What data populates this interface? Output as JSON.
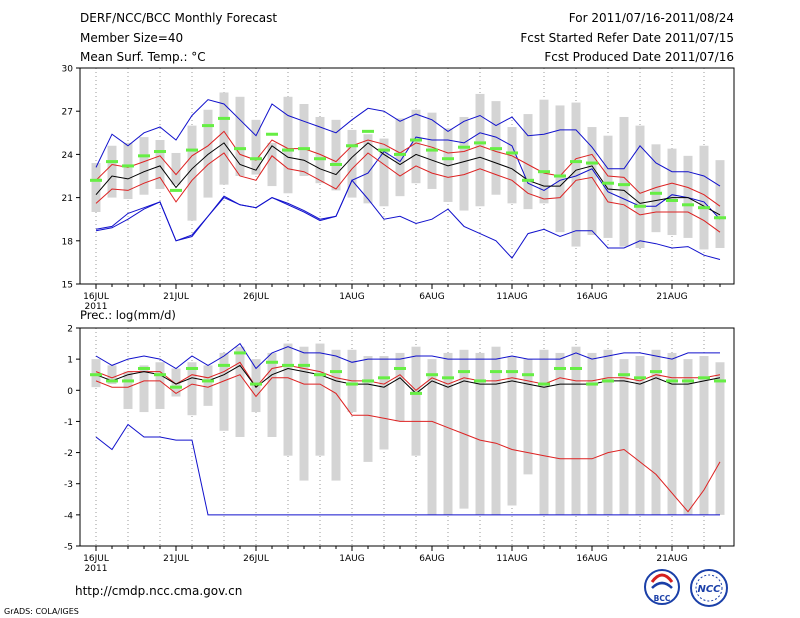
{
  "header": {
    "left": [
      "DERF/NCC/BCC Monthly Forecast",
      "Member Size=40",
      "Mean Surf. Temp.: °C"
    ],
    "right": [
      "For 2011/07/16-2011/08/24",
      "Fcst Started Refer Date 2011/07/15",
      "Fcst Produced Date 2011/07/16"
    ]
  },
  "footer": {
    "url": "http://cmdp.ncc.cma.gov.cn",
    "grads": "GrADS: COLA/IGES",
    "logo_bcc": "BCC",
    "logo_ncc": "NCC"
  },
  "colors": {
    "box": "#d4d4d4",
    "median": "#66ee44",
    "mean": "#000000",
    "spread": "#dd2222",
    "extreme": "#1111cc",
    "dot": "#999999"
  },
  "chart_data": [
    {
      "type": "line",
      "title": "Mean Surf. Temp.: °C",
      "ylim": [
        15,
        30
      ],
      "yticks": [
        15,
        18,
        21,
        24,
        27,
        30
      ],
      "xtick_labels": [
        "16JUL",
        "21JUL",
        "26JUL",
        "1AUG",
        "6AUG",
        "11AUG",
        "16AUG",
        "21AUG"
      ],
      "xtick_days": [
        1,
        6,
        11,
        17,
        22,
        27,
        32,
        37
      ],
      "year_label": "2011",
      "days": 40,
      "box_low": [
        20.0,
        21.0,
        20.9,
        21.2,
        21.6,
        21.9,
        19.4,
        21.0,
        21.9,
        22.5,
        22.6,
        21.8,
        21.3,
        22.5,
        22.0,
        21.5,
        21.0,
        20.6,
        20.4,
        21.1,
        22.0,
        21.6,
        20.7,
        20.1,
        20.4,
        21.2,
        20.6,
        20.2,
        20.6,
        18.6,
        17.6,
        18.4,
        18.2,
        17.6,
        17.5,
        18.6,
        18.4,
        18.2,
        17.4,
        17.5
      ],
      "box_high": [
        23.4,
        24.6,
        24.8,
        25.2,
        25.0,
        24.1,
        26.0,
        27.1,
        28.3,
        28.0,
        26.4,
        24.8,
        28.0,
        27.5,
        26.6,
        26.4,
        25.7,
        25.4,
        25.1,
        26.5,
        27.1,
        26.9,
        25.8,
        26.6,
        28.2,
        27.7,
        25.9,
        26.8,
        27.8,
        27.4,
        27.6,
        25.9,
        25.3,
        26.6,
        26.0,
        24.7,
        24.4,
        23.9,
        24.6,
        23.6
      ],
      "median": [
        22.2,
        23.5,
        23.2,
        23.9,
        24.2,
        21.5,
        24.3,
        26.0,
        26.5,
        24.4,
        23.7,
        25.4,
        24.3,
        24.4,
        23.7,
        23.3,
        24.6,
        25.6,
        24.3,
        24.0,
        25.0,
        24.3,
        23.7,
        24.5,
        24.8,
        24.4,
        24.1,
        22.2,
        22.8,
        22.5,
        23.5,
        23.4,
        22.0,
        21.9,
        20.4,
        21.3,
        20.8,
        20.5,
        20.3,
        19.6
      ],
      "series": [
        {
          "name": "max",
          "role": "extreme",
          "values": [
            18.8,
            19.0,
            19.9,
            20.3,
            20.7,
            18.0,
            18.4,
            19.7,
            21.0,
            20.5,
            20.3,
            21.0,
            20.6,
            20.1,
            19.5,
            19.7,
            22.2,
            22.7,
            24.2,
            23.5,
            25.2,
            25.0,
            25.0,
            24.8,
            25.5,
            25.2,
            24.6,
            22.0,
            21.5,
            22.2,
            22.5,
            23.0,
            21.4,
            20.9,
            20.4,
            20.4,
            21.2,
            21.0,
            20.7,
            19.5
          ]
        },
        {
          "name": "min",
          "role": "extreme",
          "values": [
            23.1,
            25.4,
            24.6,
            25.5,
            25.9,
            25.0,
            26.7,
            27.8,
            27.5,
            26.4,
            25.3,
            27.5,
            26.7,
            26.3,
            25.9,
            25.5,
            26.4,
            27.2,
            27.0,
            26.3,
            26.8,
            26.4,
            25.6,
            26.3,
            26.7,
            26.0,
            26.6,
            25.3,
            25.4,
            25.7,
            25.7,
            24.5,
            23.0,
            23.0,
            24.6,
            23.4,
            22.8,
            22.8,
            22.5,
            21.8
          ]
        },
        {
          "name": "mean+sd",
          "role": "spread",
          "values": [
            22.2,
            23.3,
            23.1,
            23.5,
            23.9,
            22.6,
            23.9,
            24.6,
            25.6,
            24.0,
            23.6,
            25.0,
            24.4,
            24.4,
            24.0,
            23.5,
            24.6,
            25.0,
            24.7,
            24.1,
            24.8,
            24.5,
            24.1,
            24.2,
            24.6,
            24.2,
            23.9,
            23.3,
            22.7,
            22.5,
            23.7,
            24.0,
            22.5,
            22.4,
            21.3,
            21.7,
            22.0,
            21.7,
            21.2,
            20.4
          ]
        },
        {
          "name": "mean",
          "role": "mean",
          "values": [
            21.2,
            22.5,
            22.3,
            22.8,
            23.2,
            21.7,
            23.0,
            24.0,
            24.8,
            23.3,
            22.9,
            24.6,
            23.8,
            23.6,
            23.0,
            22.6,
            23.8,
            24.8,
            24.0,
            23.3,
            24.0,
            23.6,
            23.2,
            23.5,
            23.8,
            23.4,
            23.0,
            22.2,
            21.8,
            21.8,
            22.9,
            23.2,
            21.6,
            21.5,
            20.6,
            20.8,
            21.0,
            21.0,
            20.4,
            19.8
          ]
        },
        {
          "name": "mean-sd",
          "role": "spread",
          "values": [
            20.6,
            21.6,
            21.5,
            22.0,
            22.4,
            20.7,
            22.2,
            23.3,
            24.1,
            22.5,
            22.2,
            23.9,
            23.0,
            22.8,
            22.2,
            21.6,
            23.0,
            24.1,
            23.3,
            22.5,
            23.2,
            22.7,
            22.4,
            22.6,
            23.0,
            22.6,
            22.2,
            21.3,
            20.9,
            21.0,
            22.2,
            22.4,
            20.7,
            20.5,
            19.8,
            20.0,
            20.0,
            20.0,
            19.4,
            18.6
          ]
        },
        {
          "name": "lowest",
          "role": "extreme",
          "values": [
            18.7,
            18.9,
            19.5,
            20.2,
            20.7,
            18.0,
            18.3,
            19.7,
            21.1,
            20.5,
            20.3,
            21.0,
            20.5,
            20.0,
            19.4,
            19.7,
            22.2,
            20.9,
            19.5,
            19.7,
            19.2,
            19.5,
            20.2,
            19.0,
            18.5,
            18.0,
            16.8,
            18.5,
            18.8,
            18.3,
            18.7,
            18.7,
            17.5,
            17.5,
            18.0,
            17.8,
            17.5,
            17.6,
            17.0,
            16.7
          ]
        }
      ]
    },
    {
      "type": "line",
      "title": "Prec.: log(mm/d)",
      "ylim": [
        -5,
        2
      ],
      "yticks": [
        -5,
        -4,
        -3,
        -2,
        -1,
        0,
        1,
        2
      ],
      "xtick_labels": [
        "16JUL",
        "21JUL",
        "26JUL",
        "1AUG",
        "6AUG",
        "11AUG",
        "16AUG",
        "21AUG"
      ],
      "xtick_days": [
        1,
        6,
        11,
        17,
        22,
        27,
        32,
        37
      ],
      "year_label": "2011",
      "days": 40,
      "box_low": [
        0.1,
        0.2,
        -0.6,
        -0.7,
        -0.6,
        -0.2,
        -0.8,
        -0.5,
        -1.3,
        -1.5,
        -0.7,
        -1.5,
        -2.1,
        -2.9,
        -2.1,
        -2.9,
        -0.7,
        -2.3,
        -1.9,
        -1.0,
        -2.1,
        -4.0,
        -4.0,
        -3.8,
        -4.0,
        -4.0,
        -3.7,
        -2.7,
        -4.0,
        -4.0,
        -4.0,
        -4.0,
        -4.0,
        -4.0,
        -4.0,
        -4.0,
        -4.0,
        -4.0,
        -4.0,
        -4.0
      ],
      "box_high": [
        1.0,
        0.8,
        0.6,
        0.8,
        0.9,
        0.7,
        0.9,
        0.8,
        1.2,
        1.4,
        1.0,
        1.2,
        1.5,
        1.4,
        1.5,
        1.3,
        1.3,
        1.1,
        1.1,
        1.2,
        1.4,
        1.0,
        1.2,
        1.3,
        1.2,
        1.4,
        1.1,
        1.0,
        1.3,
        1.2,
        1.4,
        1.2,
        1.3,
        1.0,
        1.1,
        1.3,
        1.2,
        1.0,
        1.1,
        0.9
      ],
      "median": [
        0.5,
        0.3,
        0.3,
        0.7,
        0.5,
        0.1,
        0.7,
        0.3,
        0.8,
        1.2,
        0.2,
        0.9,
        0.8,
        0.8,
        0.5,
        0.6,
        0.2,
        0.3,
        0.4,
        0.7,
        -0.1,
        0.5,
        0.4,
        0.6,
        0.3,
        0.6,
        0.6,
        0.5,
        0.2,
        0.7,
        0.7,
        0.2,
        0.3,
        0.5,
        0.4,
        0.6,
        0.3,
        0.3,
        0.4,
        0.3
      ],
      "series": [
        {
          "name": "max",
          "role": "extreme",
          "values": [
            1.1,
            0.8,
            1.0,
            1.1,
            1.0,
            0.7,
            1.1,
            0.8,
            1.1,
            1.5,
            0.7,
            1.2,
            1.4,
            1.2,
            1.2,
            1.1,
            0.9,
            1.0,
            1.0,
            1.0,
            1.1,
            1.1,
            1.0,
            1.0,
            1.0,
            1.0,
            1.1,
            1.0,
            1.0,
            1.0,
            1.2,
            1.0,
            1.1,
            1.2,
            1.2,
            1.1,
            1.0,
            1.2,
            1.2,
            1.2
          ]
        },
        {
          "name": "mean+sd",
          "role": "spread",
          "values": [
            0.6,
            0.4,
            0.6,
            0.6,
            0.6,
            0.2,
            0.5,
            0.4,
            0.6,
            0.9,
            0.1,
            0.7,
            0.8,
            0.7,
            0.6,
            0.4,
            0.3,
            0.3,
            0.2,
            0.5,
            0.0,
            0.4,
            0.2,
            0.4,
            0.3,
            0.3,
            0.4,
            0.3,
            0.2,
            0.4,
            0.3,
            0.3,
            0.4,
            0.4,
            0.3,
            0.5,
            0.4,
            0.4,
            0.4,
            0.5
          ]
        },
        {
          "name": "mean",
          "role": "mean",
          "values": [
            0.5,
            0.3,
            0.5,
            0.6,
            0.5,
            0.2,
            0.4,
            0.3,
            0.5,
            0.8,
            0.1,
            0.5,
            0.7,
            0.6,
            0.5,
            0.3,
            0.2,
            0.2,
            0.1,
            0.4,
            -0.1,
            0.3,
            0.1,
            0.3,
            0.2,
            0.2,
            0.3,
            0.2,
            0.1,
            0.2,
            0.2,
            0.2,
            0.3,
            0.3,
            0.2,
            0.4,
            0.2,
            0.2,
            0.3,
            0.4
          ]
        },
        {
          "name": "mean-sd",
          "role": "spread",
          "values": [
            0.3,
            0.1,
            0.1,
            0.3,
            0.3,
            -0.1,
            0.2,
            0.1,
            0.3,
            0.5,
            -0.2,
            0.4,
            0.4,
            0.2,
            0.2,
            -0.1,
            -0.8,
            -0.8,
            -0.9,
            -1.0,
            -1.0,
            -1.0,
            -1.2,
            -1.4,
            -1.6,
            -1.7,
            -1.9,
            -2.0,
            -2.1,
            -2.2,
            -2.2,
            -2.2,
            -2.0,
            -1.9,
            -2.3,
            -2.7,
            -3.3,
            -3.9,
            -3.2,
            -2.3
          ]
        },
        {
          "name": "min",
          "role": "extreme",
          "values": [
            -1.5,
            -1.9,
            -1.1,
            -1.5,
            -1.5,
            -1.6,
            -1.6,
            -4.0,
            -4.0,
            -4.0,
            -4.0,
            -4.0,
            -4.0,
            -4.0,
            -4.0,
            -4.0,
            -4.0,
            -4.0,
            -4.0,
            -4.0,
            -4.0,
            -4.0,
            -4.0,
            -4.0,
            -4.0,
            -4.0,
            -4.0,
            -4.0,
            -4.0,
            -4.0,
            -4.0,
            -4.0,
            -4.0,
            -4.0,
            -4.0,
            -4.0,
            -4.0,
            -4.0,
            -4.0,
            -4.0
          ]
        }
      ]
    }
  ]
}
